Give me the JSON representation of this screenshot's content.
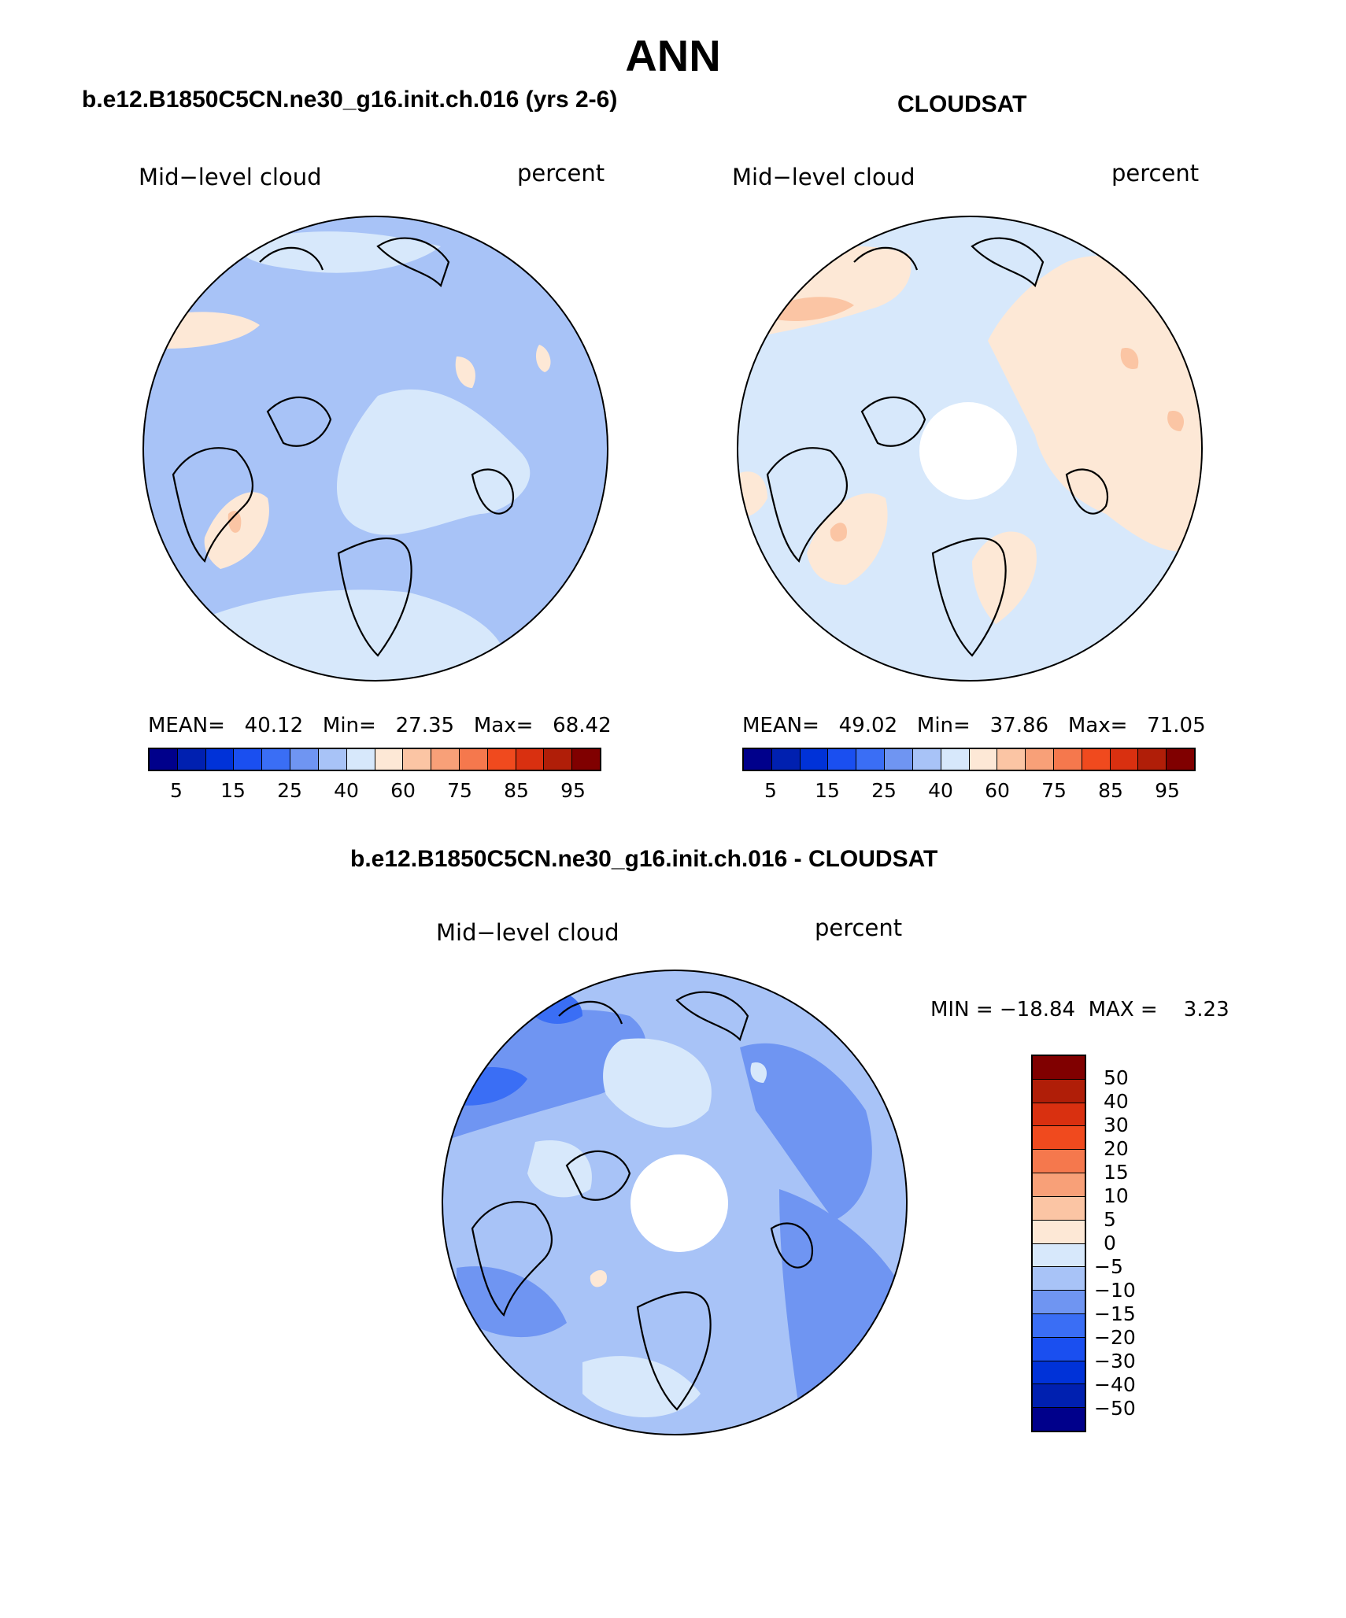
{
  "main_title": "ANN",
  "panels": [
    {
      "title": "b.e12.B1850C5CN.ne30_g16.init.ch.016 (yrs 2-6)",
      "left_label": "Mid−level cloud",
      "right_label": "percent",
      "stats": "MEAN=   40.12   Min=   27.35   Max=   68.42",
      "has_hole": false
    },
    {
      "title": "CLOUDSAT",
      "left_label": "Mid−level cloud",
      "right_label": "percent",
      "stats": "MEAN=   49.02   Min=   37.86   Max=   71.05",
      "has_hole": true
    },
    {
      "title": "b.e12.B1850C5CN.ne30_g16.init.ch.016 - CLOUDSAT",
      "left_label": "Mid−level cloud",
      "right_label": "percent",
      "stats": "MIN = −18.84  MAX =    3.23",
      "has_hole": true
    }
  ],
  "colorbar_abs": {
    "colors": [
      "#00008b",
      "#0020b0",
      "#0032d8",
      "#1a4ff0",
      "#3a6ef5",
      "#6f95f2",
      "#a8c3f7",
      "#d7e8fb",
      "#fde8d6",
      "#fbc5a4",
      "#f8a078",
      "#f5784d",
      "#f04a1e",
      "#d93010",
      "#b01e08",
      "#800000"
    ],
    "ticks": [
      "5",
      "15",
      "25",
      "40",
      "60",
      "75",
      "85",
      "95"
    ]
  },
  "colorbar_diff": {
    "colors": [
      "#800000",
      "#b01e08",
      "#d93010",
      "#f04a1e",
      "#f5784d",
      "#f8a078",
      "#fbc5a4",
      "#fde8d6",
      "#d7e8fb",
      "#a8c3f7",
      "#6f95f2",
      "#3a6ef5",
      "#1a4ff0",
      "#0032d8",
      "#0020b0",
      "#00008b"
    ],
    "ticks": [
      "50",
      "40",
      "30",
      "20",
      "15",
      "10",
      "5",
      "0",
      "−5",
      "−10",
      "−15",
      "−20",
      "−30",
      "−40",
      "−50"
    ]
  }
}
